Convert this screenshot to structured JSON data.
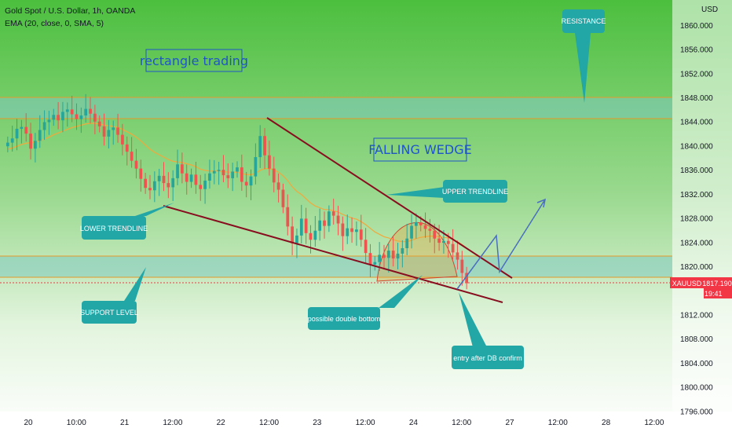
{
  "header": {
    "symbol": "Gold Spot / U.S. Dollar, 1h, OANDA",
    "indicator": "EMA (20, close, 0, SMA, 5)"
  },
  "price_axis": {
    "currency": "USD",
    "ticks": [
      "1860.000",
      "1856.000",
      "1852.000",
      "1848.000",
      "1844.000",
      "1840.000",
      "1836.000",
      "1832.000",
      "1828.000",
      "1824.000",
      "1820.000",
      "1812.000",
      "1808.000",
      "1804.000",
      "1800.000",
      "1796.000"
    ],
    "last_price_label": "XAUUSD",
    "last_price": "1817.190",
    "countdown": "19:41",
    "last_price_color": "#f23645"
  },
  "time_axis": {
    "ticks": [
      "20",
      "10:00",
      "21",
      "12:00",
      "22",
      "12:00",
      "23",
      "12:00",
      "24",
      "12:00",
      "27",
      "12:00",
      "28",
      "12:00"
    ]
  },
  "annotations": {
    "rectangle_trading": "rectangle trading",
    "falling_wedge": "FALLING WEDGE",
    "resistance": "RESISTANCE",
    "upper_trendline": "UPPER TRENDLINE",
    "lower_trendline": "LOWER TRENDLINE",
    "support_level": "SUPPORT LEVEL",
    "double_bottom": "possible double bottom",
    "entry": "entry after DB confirm"
  },
  "colors": {
    "up_candle": "#26a69a",
    "down_candle": "#ef5350",
    "ema": "#f2a83b",
    "trendline": "#880e1f",
    "callout": "#22a6a6",
    "zone_band": "#80c8c0",
    "projection": "#4a6fbf"
  },
  "chart_data": {
    "type": "candlestick",
    "title": "Gold Spot / U.S. Dollar, 1h, OANDA",
    "ylabel": "USD",
    "ylim": [
      1794,
      1864
    ],
    "x_tick_labels": [
      "20",
      "10:00",
      "21",
      "12:00",
      "22",
      "12:00",
      "23",
      "12:00",
      "24",
      "12:00",
      "27",
      "12:00",
      "28",
      "12:00"
    ],
    "y_tick_values": [
      1860,
      1856,
      1852,
      1848,
      1844,
      1840,
      1836,
      1832,
      1828,
      1824,
      1820,
      1812,
      1808,
      1804,
      1800,
      1796
    ],
    "last_price": 1817.19,
    "resistance_zone": [
      1845.7,
      1848.3
    ],
    "support_zone": [
      1818.0,
      1820.4
    ],
    "series": [
      {
        "name": "XAUUSD",
        "close_path": [
          1840.5,
          1841.2,
          1842.8,
          1843.1,
          1842.0,
          1839.5,
          1840.8,
          1842.6,
          1843.9,
          1844.3,
          1845.1,
          1844.2,
          1845.6,
          1846.0,
          1845.2,
          1844.4,
          1845.0,
          1846.1,
          1845.3,
          1844.0,
          1843.2,
          1841.5,
          1842.6,
          1843.0,
          1841.8,
          1840.2,
          1839.0,
          1837.5,
          1836.2,
          1834.5,
          1833.0,
          1832.6,
          1834.1,
          1835.0,
          1833.8,
          1833.1,
          1834.6,
          1836.9,
          1835.4,
          1834.0,
          1835.2,
          1833.5,
          1832.8,
          1834.2,
          1835.4,
          1835.8,
          1836.0,
          1835.1,
          1834.6,
          1835.7,
          1836.4,
          1834.0,
          1833.4,
          1834.9,
          1838.1,
          1841.6,
          1838.4,
          1836.2,
          1833.9,
          1832.7,
          1829.8,
          1826.6,
          1823.8,
          1825.1,
          1827.9,
          1825.5,
          1824.4,
          1825.9,
          1827.6,
          1826.7,
          1829.1,
          1828.4,
          1827.1,
          1825.0,
          1826.3,
          1825.7,
          1826.1,
          1824.4,
          1822.2,
          1820.3,
          1820.7,
          1821.9,
          1821.4,
          1822.6,
          1821.3,
          1822.1,
          1823.0,
          1824.6,
          1826.7,
          1827.3,
          1826.8,
          1826.2,
          1825.9,
          1824.6,
          1823.9,
          1824.2,
          1823.7,
          1822.3,
          1821.1,
          1818.9,
          1817.2
        ],
        "ema_values": [
          1839.4,
          1839.6,
          1839.9,
          1840.2,
          1840.4,
          1840.5,
          1840.6,
          1840.8,
          1841.1,
          1841.4,
          1841.8,
          1842.1,
          1842.4,
          1842.7,
          1843.0,
          1843.2,
          1843.4,
          1843.6,
          1843.7,
          1843.7,
          1843.6,
          1843.4,
          1843.3,
          1843.2,
          1843.0,
          1842.7,
          1842.3,
          1841.9,
          1841.4,
          1840.8,
          1840.1,
          1839.4,
          1838.9,
          1838.5,
          1838.1,
          1837.7,
          1837.4,
          1837.3,
          1837.2,
          1837.0,
          1836.8,
          1836.5,
          1836.1,
          1835.9,
          1835.8,
          1835.8,
          1835.8,
          1835.7,
          1835.6,
          1835.6,
          1835.6,
          1835.4,
          1835.2,
          1835.2,
          1835.4,
          1835.9,
          1836.2,
          1836.2,
          1836.0,
          1835.6,
          1835.0,
          1834.2,
          1833.2,
          1832.4,
          1831.9,
          1831.2,
          1830.5,
          1830.0,
          1829.7,
          1829.4,
          1829.4,
          1829.2,
          1829.0,
          1828.6,
          1828.3,
          1828.0,
          1827.8,
          1827.4,
          1826.9,
          1826.3,
          1825.7,
          1825.3,
          1824.9,
          1824.7,
          1824.4,
          1824.2,
          1824.1,
          1824.1,
          1824.3,
          1824.6,
          1824.8,
          1824.9,
          1825.0,
          1825.0,
          1824.9,
          1824.8,
          1824.7,
          1824.5,
          1824.1,
          1823.6,
          1823.0
        ]
      }
    ],
    "lines": [
      {
        "name": "upper_trendline",
        "from": {
          "x": "22 12:00",
          "y": 1846.0
        },
        "to": {
          "x": "27",
          "y": 1818.7
        }
      },
      {
        "name": "lower_trendline",
        "from": {
          "x": "21 12:00",
          "y": 1830.5
        },
        "to": {
          "x": "27",
          "y": 1813.5
        }
      }
    ]
  }
}
